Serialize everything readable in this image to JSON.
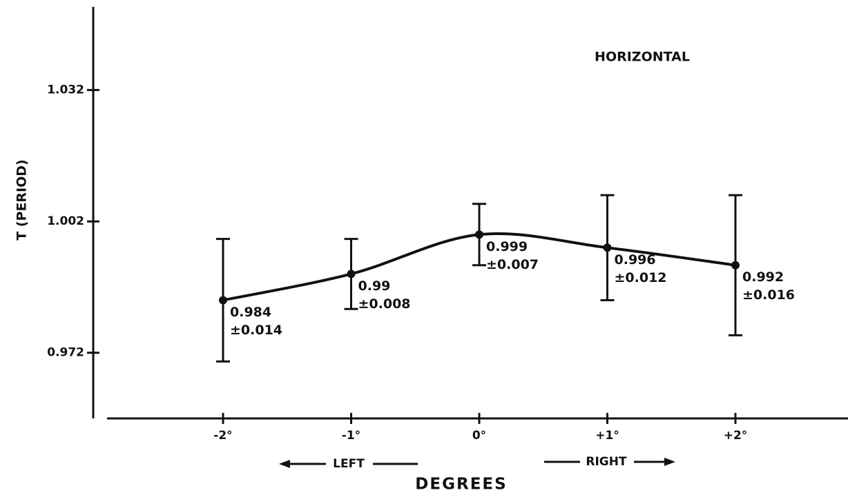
{
  "chart_data": {
    "type": "line",
    "title": "HORIZONTAL",
    "y_label": "T (PERIOD)",
    "x_label": "DEGREES",
    "annotations": [
      "LEFT",
      "RIGHT"
    ],
    "categories": [
      "-2°",
      "-1°",
      "0°",
      "+1°",
      "+2°"
    ],
    "series": [
      {
        "name": null,
        "color": "#111111",
        "values": [
          0.984,
          0.99,
          0.999,
          0.996,
          0.992
        ],
        "errors": [
          0.014,
          0.008,
          0.007,
          0.012,
          0.016
        ],
        "error_labels": [
          "±0.014",
          "±0.008",
          "±0.007",
          "±0.012",
          "±0.016"
        ]
      }
    ],
    "ylim": [
      0.957,
      1.051
    ],
    "yticks": [
      0.972,
      1.002,
      1.032
    ]
  }
}
